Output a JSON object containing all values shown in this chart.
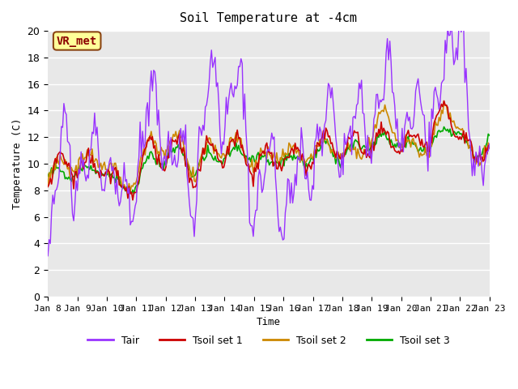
{
  "title": "Soil Temperature at -4cm",
  "xlabel": "Time",
  "ylabel": "Temperature (C)",
  "ylim": [
    0,
    20
  ],
  "xlim": [
    0,
    15
  ],
  "tick_labels": [
    "Jan 8",
    "Jan 9",
    "Jan 10",
    "Jan 11",
    "Jan 12",
    "Jan 13",
    "Jan 14",
    "Jan 15",
    "Jan 16",
    "Jan 17",
    "Jan 18",
    "Jan 19",
    "Jan 20",
    "Jan 21",
    "Jan 22",
    "Jan 23"
  ],
  "bg_color": "#e8e8e8",
  "fig_color": "#ffffff",
  "annotation_text": "VR_met",
  "annotation_bg": "#ffff99",
  "annotation_border": "#8B4513",
  "annotation_text_color": "#8B0000",
  "tair_color": "#9933ff",
  "tsoil1_color": "#cc0000",
  "tsoil2_color": "#cc8800",
  "tsoil3_color": "#00aa00",
  "legend_labels": [
    "Tair",
    "Tsoil set 1",
    "Tsoil set 2",
    "Tsoil set 3"
  ]
}
